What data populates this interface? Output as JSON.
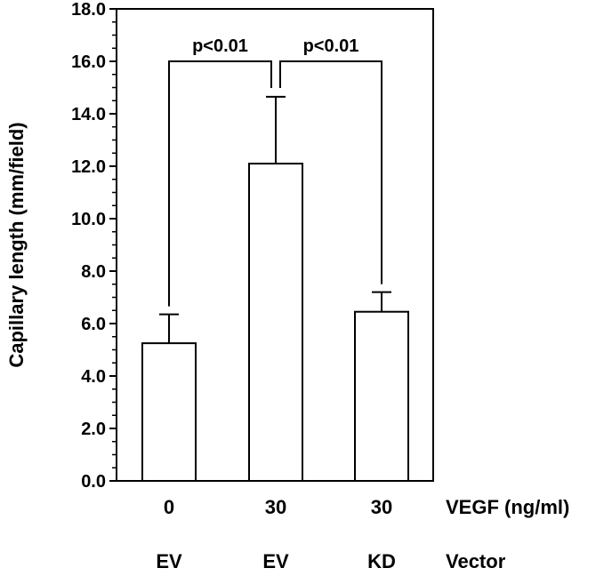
{
  "colors": {
    "background": "#ffffff",
    "bar_fill": "#ffffff",
    "stroke": "#000000",
    "text": "#000000"
  },
  "chart_data": {
    "type": "bar",
    "title": "",
    "xlabel": "",
    "ylabel": "Capillary length (mm/field)",
    "ylim": [
      0,
      18
    ],
    "y_ticks": [
      "0.0",
      "2.0",
      "4.0",
      "6.0",
      "8.0",
      "10.0",
      "12.0",
      "14.0",
      "16.0",
      "18.0"
    ],
    "y_tick_values": [
      0,
      2,
      4,
      6,
      8,
      10,
      12,
      14,
      16,
      18
    ],
    "y_minor_step": 0.5,
    "grid": false,
    "categories": [
      "0 EV",
      "30 EV",
      "30 KD"
    ],
    "values": [
      5.25,
      12.1,
      6.45
    ],
    "error_upper": [
      1.1,
      2.55,
      0.75
    ],
    "category_rows": [
      {
        "row_label": "VEGF (ng/ml)",
        "labels": [
          "0",
          "30",
          "30"
        ]
      },
      {
        "row_label": "Vector",
        "labels": [
          "EV",
          "EV",
          "KD"
        ]
      }
    ],
    "annotations": [
      {
        "text": "p<0.01",
        "from_index": 0,
        "to_index": 1,
        "bracket_level": 16.0
      },
      {
        "text": "p<0.01",
        "from_index": 1,
        "to_index": 2,
        "bracket_level": 16.0
      }
    ]
  }
}
